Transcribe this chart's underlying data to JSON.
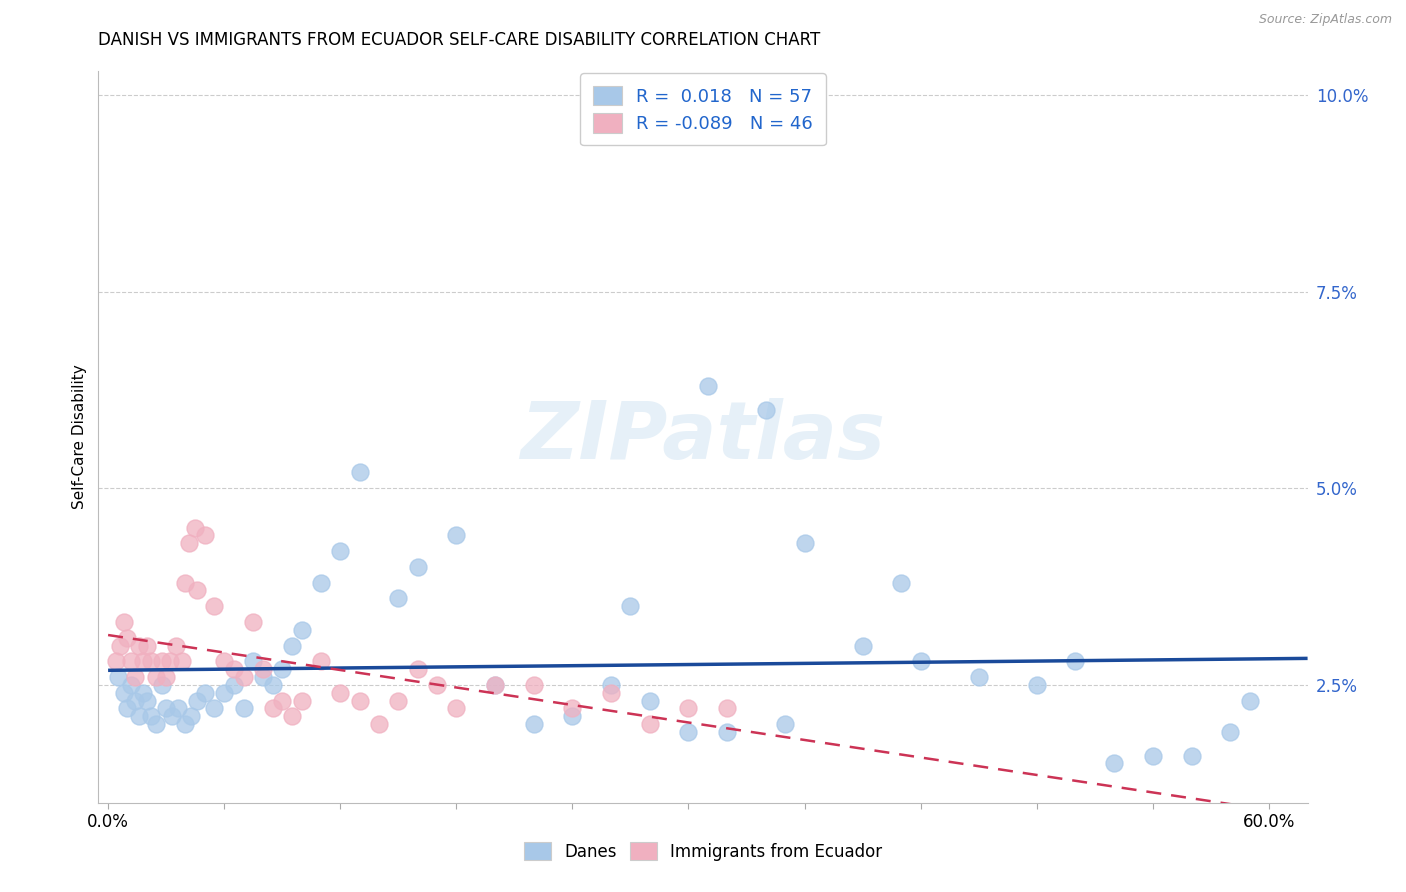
{
  "title": "DANISH VS IMMIGRANTS FROM ECUADOR SELF-CARE DISABILITY CORRELATION CHART",
  "source": "Source: ZipAtlas.com",
  "ylabel": "Self-Care Disability",
  "xlim": [
    0.0,
    0.6
  ],
  "ylim": [
    0.01,
    0.103
  ],
  "yticks_right": [
    0.025,
    0.05,
    0.075,
    0.1
  ],
  "ytick_labels_right": [
    "2.5%",
    "5.0%",
    "7.5%",
    "10.0%"
  ],
  "watermark": "ZIPatlas",
  "legend_top_labels": [
    "R =  0.018   N = 57",
    "R = -0.089   N = 46"
  ],
  "legend_bottom": [
    "Danes",
    "Immigrants from Ecuador"
  ],
  "danes_color": "#a8c8e8",
  "immigrants_color": "#f0b0c0",
  "danes_line_color": "#1a4a9a",
  "immigrants_line_color": "#cc3355",
  "danes_x": [
    0.005,
    0.008,
    0.01,
    0.012,
    0.014,
    0.016,
    0.018,
    0.02,
    0.022,
    0.025,
    0.028,
    0.03,
    0.033,
    0.036,
    0.04,
    0.043,
    0.046,
    0.05,
    0.055,
    0.06,
    0.065,
    0.07,
    0.075,
    0.08,
    0.085,
    0.09,
    0.095,
    0.1,
    0.11,
    0.12,
    0.13,
    0.15,
    0.16,
    0.18,
    0.2,
    0.22,
    0.24,
    0.26,
    0.28,
    0.3,
    0.32,
    0.34,
    0.36,
    0.39,
    0.42,
    0.45,
    0.48,
    0.5,
    0.52,
    0.54,
    0.56,
    0.58,
    0.59,
    0.27,
    0.31,
    0.35,
    0.41
  ],
  "danes_y": [
    0.026,
    0.024,
    0.022,
    0.025,
    0.023,
    0.021,
    0.024,
    0.023,
    0.021,
    0.02,
    0.025,
    0.022,
    0.021,
    0.022,
    0.02,
    0.021,
    0.023,
    0.024,
    0.022,
    0.024,
    0.025,
    0.022,
    0.028,
    0.026,
    0.025,
    0.027,
    0.03,
    0.032,
    0.038,
    0.042,
    0.052,
    0.036,
    0.04,
    0.044,
    0.025,
    0.02,
    0.021,
    0.025,
    0.023,
    0.019,
    0.019,
    0.06,
    0.043,
    0.03,
    0.028,
    0.026,
    0.025,
    0.028,
    0.015,
    0.016,
    0.016,
    0.019,
    0.023,
    0.035,
    0.063,
    0.02,
    0.038
  ],
  "immigrants_x": [
    0.004,
    0.006,
    0.008,
    0.01,
    0.012,
    0.014,
    0.016,
    0.018,
    0.02,
    0.022,
    0.025,
    0.028,
    0.03,
    0.032,
    0.035,
    0.038,
    0.042,
    0.046,
    0.05,
    0.055,
    0.06,
    0.065,
    0.07,
    0.075,
    0.08,
    0.09,
    0.1,
    0.11,
    0.12,
    0.13,
    0.14,
    0.15,
    0.16,
    0.17,
    0.18,
    0.2,
    0.22,
    0.24,
    0.26,
    0.28,
    0.3,
    0.32,
    0.04,
    0.045,
    0.085,
    0.095
  ],
  "immigrants_y": [
    0.028,
    0.03,
    0.033,
    0.031,
    0.028,
    0.026,
    0.03,
    0.028,
    0.03,
    0.028,
    0.026,
    0.028,
    0.026,
    0.028,
    0.03,
    0.028,
    0.043,
    0.037,
    0.044,
    0.035,
    0.028,
    0.027,
    0.026,
    0.033,
    0.027,
    0.023,
    0.023,
    0.028,
    0.024,
    0.023,
    0.02,
    0.023,
    0.027,
    0.025,
    0.022,
    0.025,
    0.025,
    0.022,
    0.024,
    0.02,
    0.022,
    0.022,
    0.038,
    0.045,
    0.022,
    0.021
  ]
}
